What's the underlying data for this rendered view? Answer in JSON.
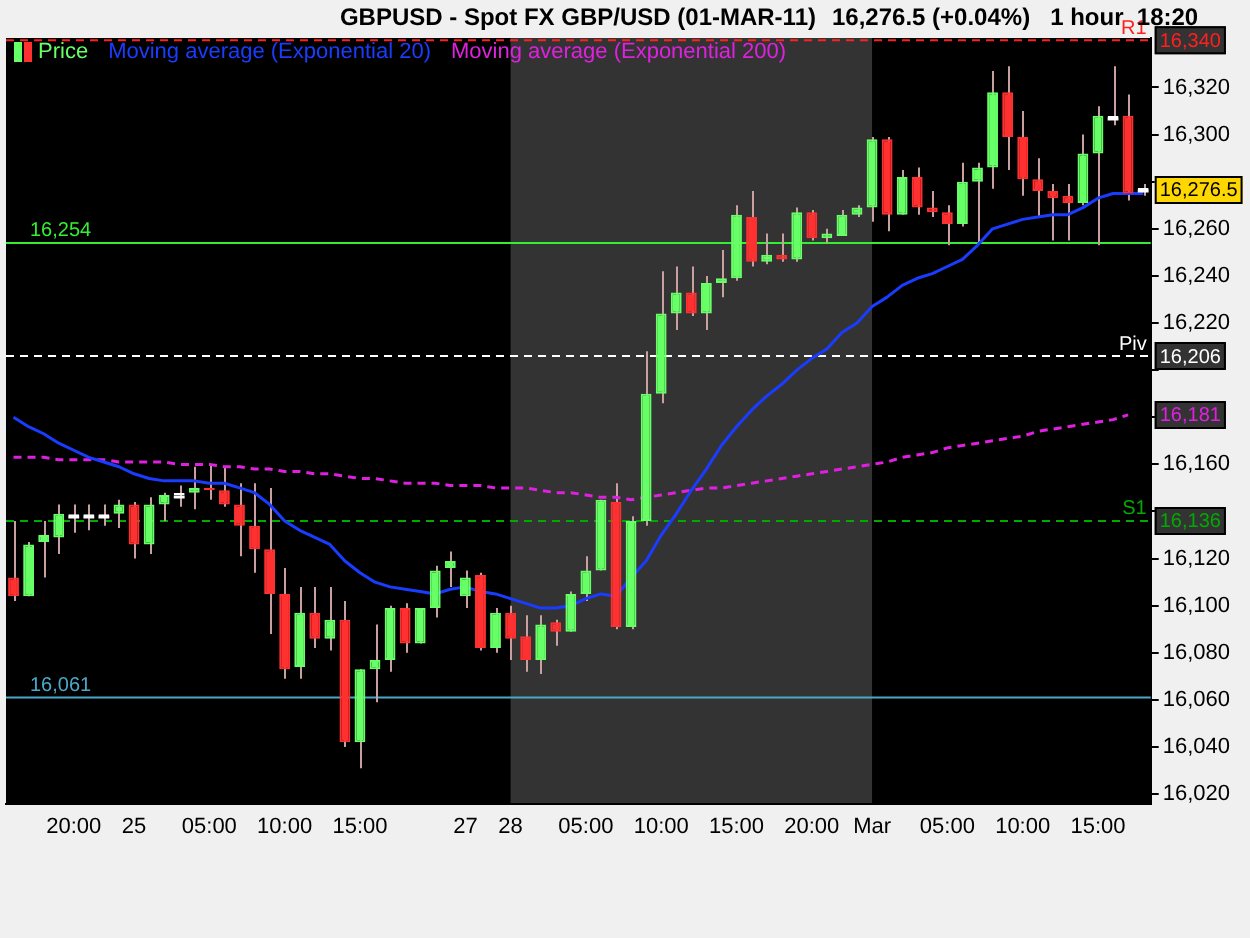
{
  "chart_data": {
    "type": "candlestick",
    "title": "GBPUSD - Spot FX GBP/USD (01-MAR-11)",
    "subtitle": "16,276.5 (+0.04%)   1 hour  18:20",
    "categories": [
      null,
      null,
      null,
      null,
      "20:00",
      null,
      null,
      null,
      "25",
      null,
      null,
      null,
      null,
      "05:00",
      null,
      null,
      null,
      null,
      "10:00",
      null,
      null,
      null,
      null,
      "15:00",
      null,
      null,
      null,
      null,
      null,
      null,
      "27",
      null,
      null,
      "28",
      null,
      null,
      null,
      null,
      "05:00",
      null,
      null,
      null,
      null,
      "10:00",
      null,
      null,
      null,
      null,
      "15:00",
      null,
      null,
      null,
      null,
      "20:00",
      null,
      null,
      null,
      "Mar",
      null,
      null,
      null,
      null,
      "05:00",
      null,
      null,
      null,
      null,
      "10:00",
      null,
      null,
      null,
      null,
      "15:00",
      null,
      null,
      null
    ],
    "series": [
      {
        "name": "Price",
        "type": "candlestick",
        "ohlc": [
          [
            16112,
            16136,
            16102,
            16104
          ],
          [
            16104,
            16127,
            16104,
            16126
          ],
          [
            16127,
            16136,
            16112,
            16130
          ],
          [
            16129,
            16143,
            16122,
            16139
          ],
          [
            16138,
            16143,
            16131,
            16138
          ],
          [
            16138,
            16143,
            16132,
            16138
          ],
          [
            16138,
            16143,
            16134,
            16138
          ],
          [
            16139,
            16145,
            16133,
            16143
          ],
          [
            16143,
            16144,
            16120,
            16126
          ],
          [
            16126,
            16146,
            16122,
            16143
          ],
          [
            16143,
            16148,
            16136,
            16147
          ],
          [
            16147,
            16151,
            16142,
            16147
          ],
          [
            16148,
            16159,
            16141,
            16150
          ],
          [
            16150,
            16160,
            16145,
            16149
          ],
          [
            16149,
            16159,
            16142,
            16143
          ],
          [
            16143,
            16152,
            16121,
            16134
          ],
          [
            16134,
            16152,
            16114,
            16124
          ],
          [
            16124,
            16150,
            16088,
            16105
          ],
          [
            16105,
            16116,
            16069,
            16073
          ],
          [
            16074,
            16108,
            16069,
            16097
          ],
          [
            16097,
            16108,
            16082,
            16086
          ],
          [
            16086,
            16108,
            16081,
            16094
          ],
          [
            16094,
            16102,
            16040,
            16042
          ],
          [
            16042,
            16073,
            16031,
            16073
          ],
          [
            16073,
            16092,
            16059,
            16077
          ],
          [
            16077,
            16100,
            16072,
            16099
          ],
          [
            16099,
            16101,
            16080,
            16084
          ],
          [
            16084,
            16099,
            16084,
            16099
          ],
          [
            16099,
            16117,
            16095,
            16115
          ],
          [
            16116,
            16123,
            16108,
            16119
          ],
          [
            16104,
            16115,
            16099,
            16112
          ],
          [
            16113,
            16114,
            16081,
            16082
          ],
          [
            16082,
            16099,
            16080,
            16097
          ],
          [
            16097,
            16100,
            16077,
            16086
          ],
          [
            16087,
            16096,
            16072,
            16077
          ],
          [
            16077,
            16096,
            16071,
            16092
          ],
          [
            16093,
            16094,
            16083,
            16089
          ],
          [
            16089,
            16106,
            16089,
            16105
          ],
          [
            16105,
            16121,
            16102,
            16115
          ],
          [
            16115,
            16145,
            16115,
            16145
          ],
          [
            16144,
            16152,
            16090,
            16091
          ],
          [
            16091,
            16138,
            16090,
            16136
          ],
          [
            16136,
            16208,
            16134,
            16190
          ],
          [
            16190,
            16242,
            16186,
            16224
          ],
          [
            16224,
            16244,
            16217,
            16233
          ],
          [
            16233,
            16244,
            16223,
            16224
          ],
          [
            16224,
            16240,
            16217,
            16237
          ],
          [
            16237,
            16251,
            16231,
            16239
          ],
          [
            16239,
            16270,
            16238,
            16266
          ],
          [
            16265,
            16276,
            16244,
            16246
          ],
          [
            16246,
            16258,
            16245,
            16249
          ],
          [
            16249,
            16258,
            16246,
            16247
          ],
          [
            16247,
            16269,
            16246,
            16267
          ],
          [
            16267,
            16268,
            16255,
            16256
          ],
          [
            16256,
            16260,
            16254,
            16258
          ],
          [
            16257,
            16268,
            16257,
            16266
          ],
          [
            16266,
            16270,
            16265,
            16269
          ],
          [
            16269,
            16299,
            16263,
            16298
          ],
          [
            16298,
            16299,
            16259,
            16266
          ],
          [
            16266,
            16285,
            16266,
            16282
          ],
          [
            16282,
            16286,
            16266,
            16269
          ],
          [
            16269,
            16276,
            16265,
            16267
          ],
          [
            16267,
            16270,
            16253,
            16262
          ],
          [
            16262,
            16288,
            16261,
            16280
          ],
          [
            16280,
            16288,
            16254,
            16286
          ],
          [
            16286,
            16327,
            16277,
            16318
          ],
          [
            16318,
            16329,
            16285,
            16299
          ],
          [
            16299,
            16310,
            16274,
            16281
          ],
          [
            16281,
            16290,
            16265,
            16276
          ],
          [
            16276,
            16279,
            16255,
            16273
          ],
          [
            16274,
            16279,
            16255,
            16271
          ],
          [
            16271,
            16300,
            16270,
            16292
          ],
          [
            16292,
            16312,
            16253,
            16308
          ],
          [
            16307,
            16329,
            16304,
            16307
          ],
          [
            16308,
            16317,
            16272,
            16275
          ],
          [
            16276.5,
            16279,
            16274,
            16276.5
          ]
        ],
        "colors": [
          "#ff3030",
          "#66ff66",
          "#66ff66",
          "#66ff66",
          "#ffffff",
          "#ffffff",
          "#ffffff",
          "#66ff66",
          "#ff3030",
          "#66ff66",
          "#66ff66",
          "#ffffff",
          "#66ff66",
          "#ff3030",
          "#ff3030",
          "#ff3030",
          "#ff3030",
          "#ff3030",
          "#ff3030",
          "#66ff66",
          "#ff3030",
          "#66ff66",
          "#ff3030",
          "#66ff66",
          "#66ff66",
          "#66ff66",
          "#ff3030",
          "#66ff66",
          "#66ff66",
          "#66ff66",
          "#66ff66",
          "#ff3030",
          "#66ff66",
          "#ff3030",
          "#ff3030",
          "#66ff66",
          "#ff3030",
          "#66ff66",
          "#66ff66",
          "#66ff66",
          "#ff3030",
          "#66ff66",
          "#66ff66",
          "#66ff66",
          "#66ff66",
          "#ff3030",
          "#66ff66",
          "#66ff66",
          "#66ff66",
          "#ff3030",
          "#66ff66",
          "#ff3030",
          "#66ff66",
          "#ff3030",
          "#66ff66",
          "#66ff66",
          "#66ff66",
          "#66ff66",
          "#ff3030",
          "#66ff66",
          "#ff3030",
          "#ff3030",
          "#ff3030",
          "#66ff66",
          "#66ff66",
          "#66ff66",
          "#ff3030",
          "#ff3030",
          "#ff3030",
          "#ff3030",
          "#ff3030",
          "#66ff66",
          "#66ff66",
          "#ffffff",
          "#ff3030",
          "#ffffff"
        ],
        "value_labels": [
          null,
          null,
          null,
          null,
          null,
          null,
          null,
          null,
          null,
          null,
          null,
          null,
          null,
          null,
          null,
          null,
          null,
          null,
          null,
          null,
          null,
          null,
          null,
          null,
          null,
          null,
          null,
          null,
          null,
          null,
          null,
          null,
          null,
          null,
          null,
          null,
          null,
          null,
          null,
          null,
          null,
          null,
          null,
          null,
          null,
          null,
          null,
          null,
          null,
          null,
          null,
          null,
          null,
          null,
          null,
          null,
          null,
          null,
          null,
          null,
          null,
          null,
          null,
          null,
          null,
          null,
          null,
          null,
          null,
          null,
          null,
          null,
          null,
          null,
          null,
          "16,276.5"
        ]
      },
      {
        "name": "Moving average (Exponential 20)",
        "type": "line",
        "color": "#1a3cff",
        "values": [
          16180,
          16176,
          16173,
          16169,
          16166,
          16163,
          16161,
          16159,
          16156,
          16154,
          16153,
          16153,
          16153,
          16152,
          16152,
          16150,
          16148,
          16143,
          16136,
          16132,
          16129,
          16126,
          16119,
          16114,
          16110,
          16108,
          16107,
          16106,
          16105,
          16107,
          16108,
          16106,
          16105,
          16103,
          16101,
          16099,
          16099,
          16100,
          16103,
          16105,
          16104,
          16112,
          16119,
          16130,
          16139,
          16149,
          16158,
          16168,
          16176,
          16183,
          16189,
          16194,
          16200,
          16205,
          16209,
          16216,
          16220,
          16227,
          16231,
          16236,
          16239,
          16241,
          16244,
          16247,
          16253,
          16260,
          16262,
          16264,
          16265,
          16266,
          16266,
          16269,
          16273,
          16275,
          16275,
          16275
        ]
      },
      {
        "name": "Moving average (Exponential 200)",
        "type": "line",
        "color": "#e020e0",
        "line_style": "dashed",
        "values": [
          16163,
          16163,
          16163,
          16162,
          16162,
          16162,
          16162,
          16161,
          16161,
          16161,
          16161,
          16160,
          16160,
          16160,
          16159,
          16159,
          16158,
          16158,
          16157,
          16157,
          16156,
          16156,
          16155,
          16154,
          16154,
          16153,
          16152,
          16152,
          16152,
          16151,
          16151,
          16151,
          16150,
          16150,
          16150,
          16149,
          16148,
          16148,
          16147,
          16146,
          16146,
          16145,
          16146,
          16147,
          16148,
          16149,
          16150,
          16150,
          16151,
          16152,
          16153,
          16154,
          16155,
          16156,
          16157,
          16158,
          16159,
          16160,
          16161,
          16163,
          16164,
          16165,
          16167,
          16168,
          16169,
          16170,
          16171,
          16172,
          16174,
          16175,
          16176,
          16177,
          16178,
          16179,
          16181,
          null
        ],
        "value_labels": [
          null,
          null,
          null,
          null,
          null,
          null,
          null,
          null,
          null,
          null,
          null,
          null,
          null,
          null,
          null,
          null,
          null,
          null,
          null,
          null,
          null,
          null,
          null,
          null,
          null,
          null,
          null,
          null,
          null,
          null,
          null,
          null,
          null,
          null,
          null,
          null,
          null,
          null,
          null,
          null,
          null,
          null,
          null,
          null,
          null,
          null,
          null,
          null,
          null,
          null,
          null,
          null,
          null,
          null,
          null,
          null,
          null,
          null,
          null,
          null,
          null,
          null,
          null,
          null,
          null,
          null,
          null,
          null,
          null,
          null,
          null,
          null,
          null,
          null,
          "16,181",
          null
        ]
      }
    ],
    "ylim": [
      16016,
      16341
    ],
    "yticks": [
      {
        "value": 16020,
        "label": "16,020"
      },
      {
        "value": 16040,
        "label": "16,040"
      },
      {
        "value": 16060,
        "label": "16,060"
      },
      {
        "value": 16080,
        "label": "16,080"
      },
      {
        "value": 16100,
        "label": "16,100"
      },
      {
        "value": 16120,
        "label": "16,120"
      },
      {
        "value": 16140,
        "label": null
      },
      {
        "value": 16160,
        "label": "16,160"
      },
      {
        "value": 16180,
        "label": null
      },
      {
        "value": 16200,
        "label": null
      },
      {
        "value": 16220,
        "label": "16,220"
      },
      {
        "value": 16240,
        "label": "16,240"
      },
      {
        "value": 16260,
        "label": "16,260"
      },
      {
        "value": 16280,
        "label": null
      },
      {
        "value": 16300,
        "label": "16,300"
      },
      {
        "value": 16320,
        "label": "16,320"
      }
    ],
    "ref_lines": [
      {
        "axis": "y",
        "value": 16340,
        "label": "R1",
        "color": "#ff2020",
        "line_style": "dashed"
      },
      {
        "axis": "y",
        "value": 16254,
        "label": "16,254",
        "color": "#33ee33",
        "line_style": "solid"
      },
      {
        "axis": "y",
        "value": 16206,
        "label": "Piv",
        "color": "#ffffff",
        "line_style": "dashed"
      },
      {
        "axis": "y",
        "value": 16136,
        "label": "S1",
        "color": "#00aa00",
        "line_style": "dashed"
      },
      {
        "axis": "y",
        "value": 16061,
        "label": "16,061",
        "color": "#4aa8c8",
        "line_style": "solid"
      }
    ],
    "bands": [
      {
        "axis": "x",
        "from": "28",
        "to": "Mar",
        "color": "#333333"
      }
    ],
    "annotations": [
      {
        "text": "16,340",
        "y": 16340
      },
      {
        "text": "16,206",
        "y": 16206
      },
      {
        "text": "16,136",
        "y": 16136
      }
    ],
    "legend": "top left"
  }
}
